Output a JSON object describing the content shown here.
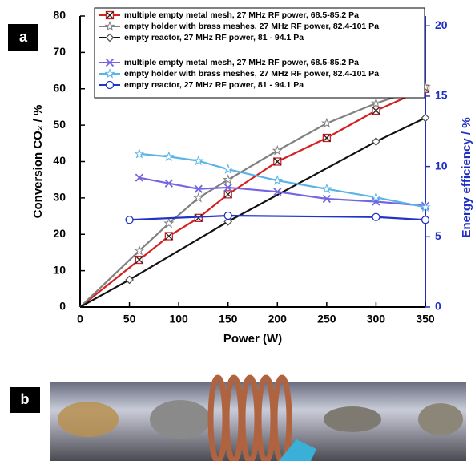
{
  "chart_data": {
    "type": "line",
    "panel_labels": [
      "a",
      "b"
    ],
    "xlabel": "Power (W)",
    "ylabel": "Conversion CO₂ / %",
    "y2label": "Energy efficiency / %",
    "y2color": "#1f2fc4",
    "xlim": [
      0,
      350
    ],
    "xticks": [
      0,
      50,
      100,
      150,
      200,
      250,
      300,
      350
    ],
    "ylim": [
      0,
      80
    ],
    "yticks": [
      0,
      10,
      20,
      30,
      40,
      50,
      60,
      70,
      80
    ],
    "y2lim": [
      0,
      20.7
    ],
    "y2ticks": [
      0,
      5,
      10,
      15,
      20
    ],
    "series": [
      {
        "name": "multiple empty metal mesh, 27 MHz RF power, 68.5-85.2 Pa",
        "color": "#d62020",
        "marker": "xsquare",
        "x": [
          0,
          60,
          90,
          120,
          150,
          200,
          250,
          300,
          350
        ],
        "values": [
          0,
          13,
          19.5,
          24.5,
          31,
          40,
          46.5,
          54,
          60
        ]
      },
      {
        "name": "empty holder with brass meshes, 27 MHz RF power,  82.4-101 Pa",
        "color": "#808080",
        "marker": "star",
        "x": [
          0,
          60,
          90,
          120,
          150,
          200,
          250,
          300,
          350
        ],
        "values": [
          0,
          15.5,
          23,
          30,
          35,
          43,
          50.5,
          56,
          60.5
        ]
      },
      {
        "name": "empty reactor, 27 MHz RF power, 81 - 94.1 Pa",
        "color": "#111111",
        "marker": "diamond",
        "x": [
          0,
          50,
          150,
          300,
          350
        ],
        "values": [
          0,
          7.5,
          23.5,
          45.5,
          52
        ]
      },
      {
        "name": "multiple empty metal mesh, 27 MHz RF power, 68.5-85.2 Pa",
        "color": "#7466e0",
        "marker": "x",
        "axis": "y2",
        "x": [
          60,
          90,
          120,
          150,
          200,
          250,
          300,
          350
        ],
        "values": [
          9.2,
          8.8,
          8.4,
          8.5,
          8.2,
          7.7,
          7.5,
          7.2
        ]
      },
      {
        "name": "empty holder with brass meshes, 27 MHz RF power,  82.4-101 Pa",
        "color": "#5ab4e8",
        "marker": "star",
        "axis": "y2",
        "x": [
          60,
          90,
          120,
          150,
          200,
          250,
          300,
          350
        ],
        "values": [
          10.9,
          10.7,
          10.4,
          9.8,
          9.0,
          8.4,
          7.8,
          7.1
        ]
      },
      {
        "name": "empty reactor, 27 MHz RF power, 81 - 94.1 Pa",
        "color": "#2233c8",
        "marker": "circle",
        "axis": "y2",
        "x": [
          50,
          150,
          300,
          350
        ],
        "values": [
          6.2,
          6.5,
          6.4,
          6.2
        ]
      }
    ]
  }
}
